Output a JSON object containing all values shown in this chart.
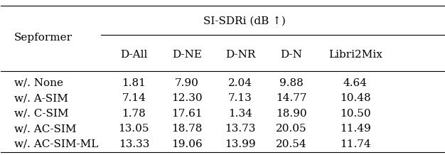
{
  "title": "SI-SDRi (dB ↑)",
  "col_header_row1": "Sepformer",
  "col_headers": [
    "D-All",
    "D-NE",
    "D-NR",
    "D-N",
    "Libri2Mix"
  ],
  "row_labels": [
    "w/. None",
    "w/. A-SIM",
    "w/. C-SIM",
    "w/. AC-SIM",
    "w/. AC-SIM-ML"
  ],
  "data": [
    [
      1.81,
      7.9,
      2.04,
      9.88,
      4.64
    ],
    [
      7.14,
      12.3,
      7.13,
      14.77,
      10.48
    ],
    [
      1.78,
      17.61,
      1.34,
      18.9,
      10.5
    ],
    [
      13.05,
      18.78,
      13.73,
      20.05,
      11.49
    ],
    [
      13.33,
      19.06,
      13.99,
      20.54,
      11.74
    ]
  ],
  "font_size": 11,
  "header_font_size": 11
}
